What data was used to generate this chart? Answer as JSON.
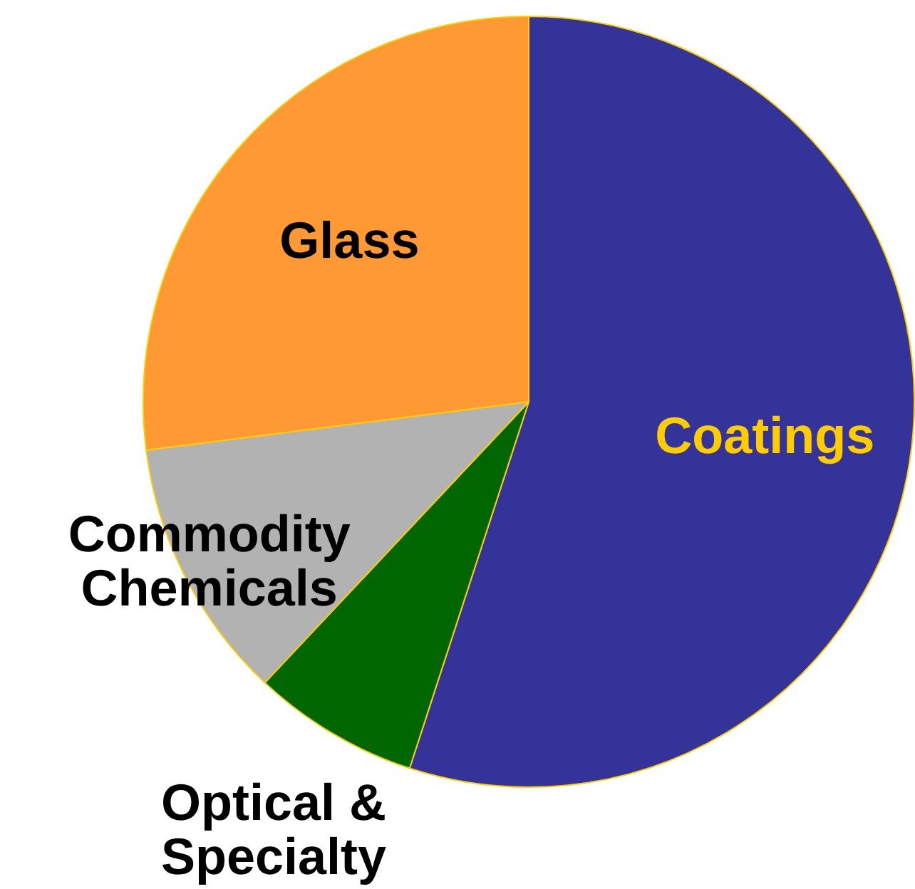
{
  "chart_data": {
    "type": "pie",
    "categories": [
      "Coatings",
      "Optical & Specialty",
      "Commodity Chemicals",
      "Glass"
    ],
    "values": [
      55,
      7,
      11,
      27
    ],
    "colors": [
      "#333399",
      "#006600",
      "#b2b2b2",
      "#ff9933"
    ],
    "legend": false
  }
}
